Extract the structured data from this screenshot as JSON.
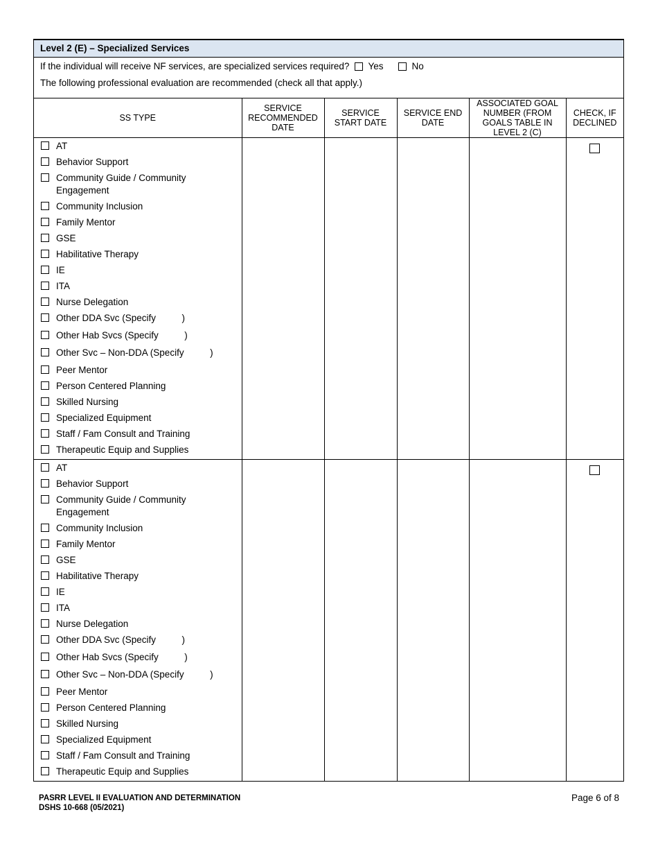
{
  "section_title": "Level 2 (E) – Specialized Services",
  "question": "If the individual will receive NF services, are specialized services required?",
  "options": {
    "yes": "Yes",
    "no": "No"
  },
  "instruction": "The following professional evaluation are recommended (check all that apply.)",
  "columns": [
    "SS TYPE",
    "SERVICE RECOMMENDED DATE",
    "SERVICE START DATE",
    "SERVICE END DATE",
    "ASSOCIATED GOAL NUMBER (FROM GOALS TABLE IN LEVEL 2 (C)",
    "CHECK, IF DECLINED"
  ],
  "ss_types": [
    "AT",
    "Behavior Support",
    "Community Guide / Community Engagement",
    "Community Inclusion",
    "Family Mentor",
    "GSE",
    "Habilitative Therapy",
    "IE",
    "ITA",
    "Nurse Delegation",
    "Other DDA Svc (Specify          )",
    "Other Hab Svcs (Specify          )",
    "Other Svc – Non-DDA (Specify          )",
    "Peer Mentor",
    "Person Centered Planning",
    "Skilled Nursing",
    "Specialized Equipment",
    "Staff / Fam Consult and Training",
    "Therapeutic Equip and Supplies"
  ],
  "blocks": 2,
  "footer": {
    "line1": "PASRR LEVEL II EVALUATION AND DETERMINATION",
    "line2": "DSHS 10-668 (05/2021)",
    "page": "Page 6 of 8"
  }
}
